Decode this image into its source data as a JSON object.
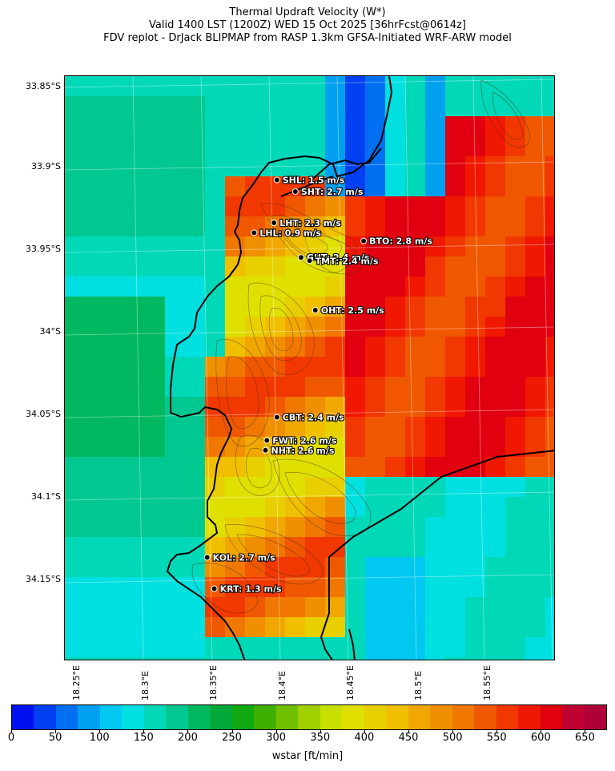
{
  "header": {
    "line1": "Thermal Updraft Velocity (W*)",
    "line2": "Valid 1400 LST (1200Z) WED 15 Oct 2025 [36hrFcst@0614z]",
    "line3": "FDV replot - DrJack BLIPMAP from RASP 1.3km GFSA-Initiated WRF-ARW model"
  },
  "lat_labels": [
    "33.85°S",
    "33.9°S",
    "33.95°S",
    "34°S",
    "34.05°S",
    "34.1°S",
    "34.15°S"
  ],
  "lon_labels": [
    "18.25°E",
    "18.3°E",
    "18.35°E",
    "18.4°E",
    "18.45°E",
    "18.5°E",
    "18.55°E"
  ],
  "stations": [
    {
      "code": "SHL",
      "label": "SHL: 1.5 m/s",
      "lat": -33.908,
      "lon": 18.384,
      "wstar_ms": 1.5
    },
    {
      "code": "SHT",
      "label": "SHT: 2.7 m/s",
      "lat": -33.915,
      "lon": 18.397,
      "wstar_ms": 2.7
    },
    {
      "code": "LHT",
      "label": "LHT: 2.3 m/s",
      "lat": -33.934,
      "lon": 18.382,
      "wstar_ms": 2.3
    },
    {
      "code": "LHL",
      "label": "LHL: 0.9 m/s",
      "lat": -33.94,
      "lon": 18.368,
      "wstar_ms": 0.9
    },
    {
      "code": "BTO",
      "label": "BTO: 2.8 m/s",
      "lat": -33.945,
      "lon": 18.445,
      "wstar_ms": 2.8
    },
    {
      "code": "GUT",
      "label": "GUT: 2.4 m/s",
      "lat": -33.955,
      "lon": 18.401,
      "wstar_ms": 2.4
    },
    {
      "code": "TMT",
      "label": "TMT: 2.4 m/s",
      "lat": -33.957,
      "lon": 18.407,
      "wstar_ms": 2.4
    },
    {
      "code": "OHT",
      "label": "OHT: 2.5 m/s",
      "lat": -33.987,
      "lon": 18.411,
      "wstar_ms": 2.5
    },
    {
      "code": "CBT",
      "label": "CBT: 2.4 m/s",
      "lat": -34.052,
      "lon": 18.384,
      "wstar_ms": 2.4
    },
    {
      "code": "FWT",
      "label": "FWT: 2.6 m/s",
      "lat": -34.066,
      "lon": 18.377,
      "wstar_ms": 2.6
    },
    {
      "code": "NHT",
      "label": "NHT: 2.6 m/s",
      "lat": -34.072,
      "lon": 18.376,
      "wstar_ms": 2.6
    },
    {
      "code": "KOL",
      "label": "KOL: 2.7 m/s",
      "lat": -34.137,
      "lon": 18.335,
      "wstar_ms": 2.7
    },
    {
      "code": "KRT",
      "label": "KRT: 1.3 m/s",
      "lat": -34.156,
      "lon": 18.34,
      "wstar_ms": 1.3
    }
  ],
  "colorbar": {
    "label": "wstar [ft/min]",
    "ticks": [
      "0",
      "50",
      "100",
      "150",
      "200",
      "250",
      "300",
      "350",
      "400",
      "450",
      "500",
      "550",
      "600",
      "650"
    ],
    "min": 0,
    "max": 675,
    "step": 25,
    "colors": [
      "#0010f0",
      "#0040f0",
      "#0070f0",
      "#00a0f0",
      "#00c8f0",
      "#00e0e0",
      "#00d8b8",
      "#00c890",
      "#00b860",
      "#00a838",
      "#10a810",
      "#40b000",
      "#70c000",
      "#a0d000",
      "#c8e000",
      "#e0e000",
      "#e8d000",
      "#f0c000",
      "#f0a800",
      "#f09000",
      "#f07800",
      "#f05800",
      "#f03800",
      "#f01800",
      "#e00010",
      "#c00030",
      "#b00038"
    ]
  },
  "map": {
    "lat_range": [
      -34.2,
      -33.845
    ],
    "lon_range": [
      18.235,
      18.58
    ]
  }
}
